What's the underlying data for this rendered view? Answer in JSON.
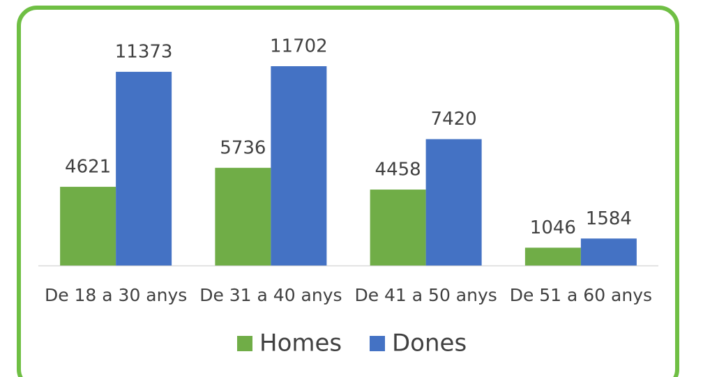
{
  "chart_data": {
    "type": "bar",
    "categories": [
      "De 18 a 30 anys",
      "De 31 a 40 anys",
      "De 41 a 50 anys",
      "De 51 a 60 anys"
    ],
    "series": [
      {
        "name": "Homes",
        "color": "#70ad47",
        "values": [
          4621,
          5736,
          4458,
          1046
        ]
      },
      {
        "name": "Dones",
        "color": "#4472c4",
        "values": [
          11373,
          11702,
          7420,
          1584
        ]
      }
    ],
    "legend": "bottom"
  }
}
